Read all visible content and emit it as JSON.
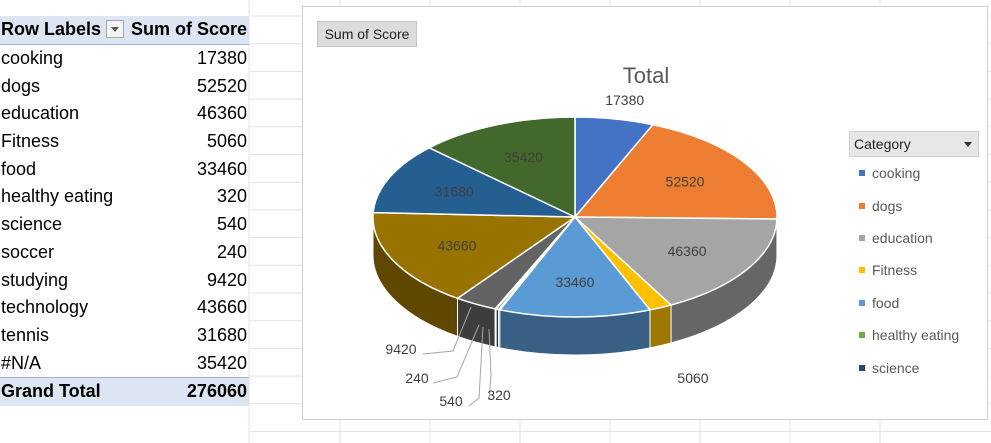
{
  "pivot": {
    "header_label": "Row Labels",
    "header_value": "Sum of Score",
    "rows": [
      {
        "label": "cooking",
        "value": "17380"
      },
      {
        "label": "dogs",
        "value": "52520"
      },
      {
        "label": "education",
        "value": "46360"
      },
      {
        "label": "Fitness",
        "value": "5060"
      },
      {
        "label": "food",
        "value": "33460"
      },
      {
        "label": "healthy eating",
        "value": "320"
      },
      {
        "label": "science",
        "value": "540"
      },
      {
        "label": "soccer",
        "value": "240"
      },
      {
        "label": "studying",
        "value": "9420"
      },
      {
        "label": "technology",
        "value": "43660"
      },
      {
        "label": "tennis",
        "value": "31680"
      },
      {
        "label": "#N/A",
        "value": "35420"
      }
    ],
    "total_label": "Grand Total",
    "total_value": "276060"
  },
  "chart": {
    "field_button": "Sum of Score",
    "legend_title": "Category"
  },
  "chart_data": {
    "type": "pie",
    "title": "Total",
    "categories": [
      "cooking",
      "dogs",
      "education",
      "Fitness",
      "food",
      "healthy eating",
      "science",
      "soccer",
      "studying",
      "technology",
      "tennis",
      "#N/A"
    ],
    "values": [
      17380,
      52520,
      46360,
      5060,
      33460,
      320,
      540,
      240,
      9420,
      43660,
      31680,
      35420
    ],
    "labels": [
      "17380",
      "52520",
      "46360",
      "5060",
      "33460",
      "320",
      "540",
      "240",
      "9420",
      "43660",
      "31680",
      "35420"
    ],
    "colors": [
      "#4472c4",
      "#ed7d31",
      "#a5a5a5",
      "#ffc000",
      "#5b9bd5",
      "#70ad47",
      "#264478",
      "#9e480e",
      "#636363",
      "#997300",
      "#255e91",
      "#43682b"
    ],
    "legend": [
      "cooking",
      "dogs",
      "education",
      "Fitness",
      "food",
      "healthy eating",
      "science"
    ],
    "legend_placement": "right"
  }
}
